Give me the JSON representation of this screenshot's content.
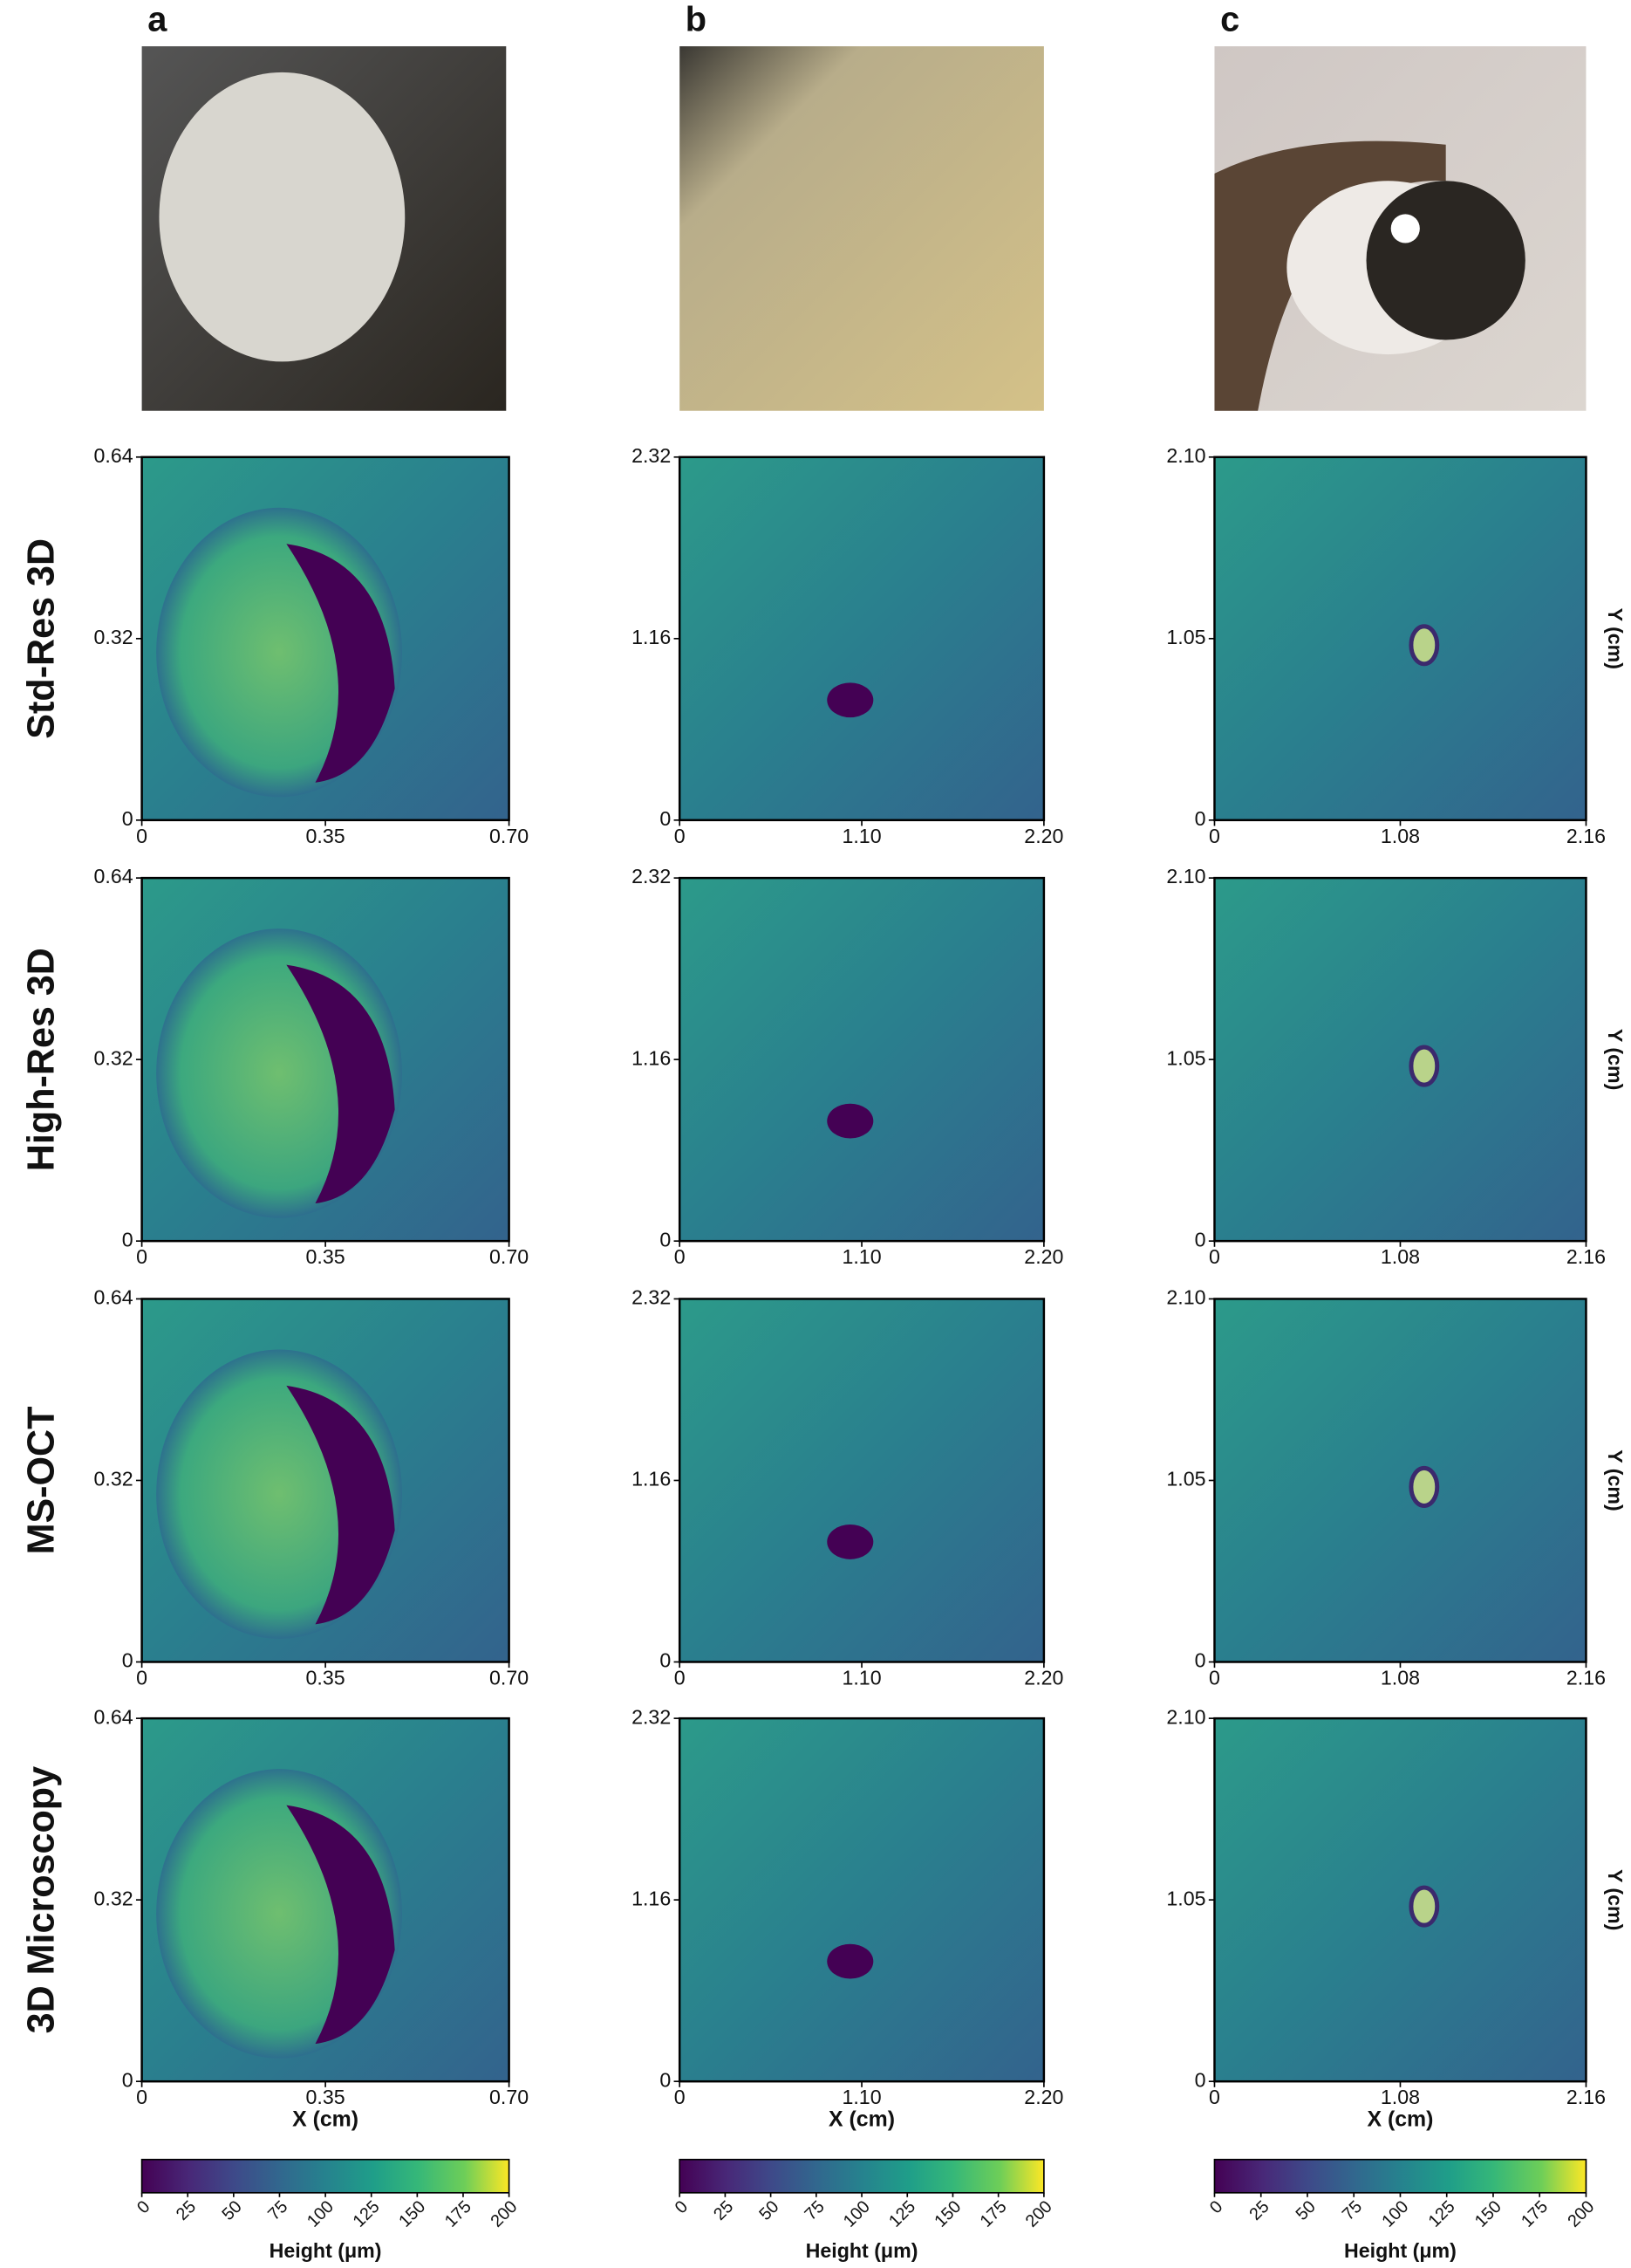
{
  "columns": [
    {
      "label": "a",
      "xlim": [
        0,
        0.7
      ],
      "ylim": [
        0,
        0.64
      ],
      "xticks": [
        0,
        0.35,
        {
          "value": 0.7,
          "label": "0.70"
        }
      ],
      "yticks": [
        0,
        0.32,
        0.64
      ]
    },
    {
      "label": "b",
      "xlim": [
        0,
        2.2
      ],
      "ylim": [
        0,
        2.32
      ],
      "xticks": [
        0,
        {
          "value": 1.1,
          "label": "1.10"
        },
        {
          "value": 2.2,
          "label": "2.20"
        }
      ],
      "yticks": [
        0,
        1.16,
        2.32
      ]
    },
    {
      "label": "c",
      "xlim": [
        0,
        2.16
      ],
      "ylim": [
        0,
        2.1
      ],
      "xticks": [
        0,
        1.08,
        2.16
      ],
      "yticks": [
        0,
        1.05,
        {
          "value": 2.1,
          "label": "2.10"
        }
      ]
    }
  ],
  "rows": [
    "Std-Res 3D",
    "High-Res 3D",
    "MS-OCT",
    "3D Microscopy"
  ],
  "x_label": "X (cm)",
  "y_label": "Y (cm)",
  "colorbar": {
    "label": "Height (μm)",
    "lim": [
      0,
      200
    ],
    "ticks": [
      0,
      25,
      50,
      75,
      100,
      125,
      150,
      175,
      200
    ]
  }
}
